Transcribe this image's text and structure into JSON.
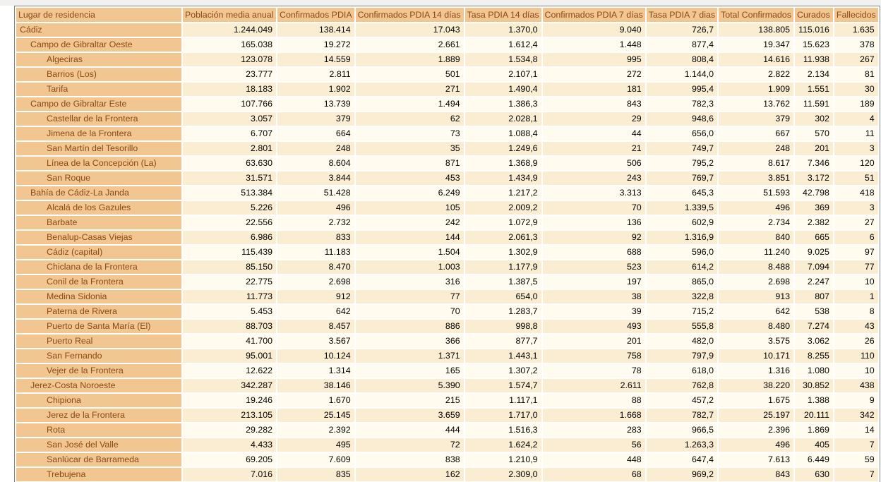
{
  "colors": {
    "header_tan": "#f1c691",
    "row_odd_cream": "#faedd1",
    "row_even_ivory": "#fffbee",
    "label_brown": "#8b4a12",
    "value_black": "#000000",
    "table_border_grey": "#828282"
  },
  "table": {
    "columns": [
      {
        "key": "lugar",
        "label": "Lugar de residencia"
      },
      {
        "key": "poblacion",
        "label": "Población media anual"
      },
      {
        "key": "confirmados",
        "label": "Confirmados PDIA"
      },
      {
        "key": "confirmados14",
        "label": "Confirmados PDIA 14 días"
      },
      {
        "key": "tasa14",
        "label": "Tasa PDIA 14 días"
      },
      {
        "key": "confirmados7",
        "label": "Confirmados PDIA 7 días"
      },
      {
        "key": "tasa7",
        "label": "Tasa PDIA 7 dias"
      },
      {
        "key": "total",
        "label": "Total Confirmados"
      },
      {
        "key": "curados",
        "label": "Curados"
      },
      {
        "key": "fallecidos",
        "label": "Fallecidos"
      }
    ],
    "rows": [
      {
        "name": "Cádiz",
        "level": 0,
        "values": [
          "1.244.049",
          "138.414",
          "17.043",
          "1.370,0",
          "9.040",
          "726,7",
          "138.805",
          "115.016",
          "1.635"
        ]
      },
      {
        "name": "Campo de Gibraltar Oeste",
        "level": 1,
        "values": [
          "165.038",
          "19.272",
          "2.661",
          "1.612,4",
          "1.448",
          "877,4",
          "19.347",
          "15.623",
          "378"
        ]
      },
      {
        "name": "Algeciras",
        "level": 2,
        "values": [
          "123.078",
          "14.559",
          "1.889",
          "1.534,8",
          "995",
          "808,4",
          "14.616",
          "11.938",
          "267"
        ]
      },
      {
        "name": "Barrios (Los)",
        "level": 2,
        "values": [
          "23.777",
          "2.811",
          "501",
          "2.107,1",
          "272",
          "1.144,0",
          "2.822",
          "2.134",
          "81"
        ]
      },
      {
        "name": "Tarifa",
        "level": 2,
        "values": [
          "18.183",
          "1.902",
          "271",
          "1.490,4",
          "181",
          "995,4",
          "1.909",
          "1.551",
          "30"
        ]
      },
      {
        "name": "Campo de Gibraltar Este",
        "level": 1,
        "values": [
          "107.766",
          "13.739",
          "1.494",
          "1.386,3",
          "843",
          "782,3",
          "13.762",
          "11.591",
          "189"
        ]
      },
      {
        "name": "Castellar de la Frontera",
        "level": 2,
        "values": [
          "3.057",
          "379",
          "62",
          "2.028,1",
          "29",
          "948,6",
          "379",
          "302",
          "4"
        ]
      },
      {
        "name": "Jimena de la Frontera",
        "level": 2,
        "values": [
          "6.707",
          "664",
          "73",
          "1.088,4",
          "44",
          "656,0",
          "667",
          "570",
          "11"
        ]
      },
      {
        "name": "San Martín del Tesorillo",
        "level": 2,
        "values": [
          "2.801",
          "248",
          "35",
          "1.249,6",
          "21",
          "749,7",
          "248",
          "201",
          "3"
        ]
      },
      {
        "name": "Línea de la Concepción (La)",
        "level": 2,
        "values": [
          "63.630",
          "8.604",
          "871",
          "1.368,9",
          "506",
          "795,2",
          "8.617",
          "7.346",
          "120"
        ]
      },
      {
        "name": "San Roque",
        "level": 2,
        "values": [
          "31.571",
          "3.844",
          "453",
          "1.434,9",
          "243",
          "769,7",
          "3.851",
          "3.172",
          "51"
        ]
      },
      {
        "name": "Bahía de Cádiz-La Janda",
        "level": 1,
        "values": [
          "513.384",
          "51.428",
          "6.249",
          "1.217,2",
          "3.313",
          "645,3",
          "51.593",
          "42.798",
          "418"
        ]
      },
      {
        "name": "Alcalá de los Gazules",
        "level": 2,
        "values": [
          "5.226",
          "496",
          "105",
          "2.009,2",
          "70",
          "1.339,5",
          "496",
          "369",
          "3"
        ]
      },
      {
        "name": "Barbate",
        "level": 2,
        "values": [
          "22.556",
          "2.732",
          "242",
          "1.072,9",
          "136",
          "602,9",
          "2.734",
          "2.382",
          "27"
        ]
      },
      {
        "name": "Benalup-Casas Viejas",
        "level": 2,
        "values": [
          "6.986",
          "833",
          "144",
          "2.061,3",
          "92",
          "1.316,9",
          "840",
          "665",
          "6"
        ]
      },
      {
        "name": "Cádiz (capital)",
        "level": 2,
        "values": [
          "115.439",
          "11.183",
          "1.504",
          "1.302,9",
          "688",
          "596,0",
          "11.240",
          "9.025",
          "97"
        ]
      },
      {
        "name": "Chiclana de la Frontera",
        "level": 2,
        "values": [
          "85.150",
          "8.470",
          "1.003",
          "1.177,9",
          "523",
          "614,2",
          "8.488",
          "7.094",
          "77"
        ]
      },
      {
        "name": "Conil de la Frontera",
        "level": 2,
        "values": [
          "22.775",
          "2.698",
          "316",
          "1.387,5",
          "197",
          "865,0",
          "2.698",
          "2.247",
          "10"
        ]
      },
      {
        "name": "Medina Sidonia",
        "level": 2,
        "values": [
          "11.773",
          "912",
          "77",
          "654,0",
          "38",
          "322,8",
          "913",
          "807",
          "1"
        ]
      },
      {
        "name": "Paterna de Rivera",
        "level": 2,
        "values": [
          "5.453",
          "642",
          "70",
          "1.283,7",
          "39",
          "715,2",
          "642",
          "538",
          "8"
        ]
      },
      {
        "name": "Puerto de Santa María (El)",
        "level": 2,
        "values": [
          "88.703",
          "8.457",
          "886",
          "998,8",
          "493",
          "555,8",
          "8.480",
          "7.274",
          "43"
        ]
      },
      {
        "name": "Puerto Real",
        "level": 2,
        "values": [
          "41.700",
          "3.567",
          "366",
          "877,7",
          "201",
          "482,0",
          "3.575",
          "3.062",
          "26"
        ]
      },
      {
        "name": "San Fernando",
        "level": 2,
        "values": [
          "95.001",
          "10.124",
          "1.371",
          "1.443,1",
          "758",
          "797,9",
          "10.171",
          "8.255",
          "110"
        ]
      },
      {
        "name": "Vejer de la Frontera",
        "level": 2,
        "values": [
          "12.622",
          "1.314",
          "165",
          "1.307,2",
          "78",
          "618,0",
          "1.316",
          "1.080",
          "10"
        ]
      },
      {
        "name": "Jerez-Costa Noroeste",
        "level": 1,
        "values": [
          "342.287",
          "38.146",
          "5.390",
          "1.574,7",
          "2.611",
          "762,8",
          "38.220",
          "30.852",
          "438"
        ]
      },
      {
        "name": "Chipiona",
        "level": 2,
        "values": [
          "19.246",
          "1.670",
          "215",
          "1.117,1",
          "88",
          "457,2",
          "1.675",
          "1.388",
          "9"
        ]
      },
      {
        "name": "Jerez de la Frontera",
        "level": 2,
        "values": [
          "213.105",
          "25.145",
          "3.659",
          "1.717,0",
          "1.668",
          "782,7",
          "25.197",
          "20.111",
          "342"
        ]
      },
      {
        "name": "Rota",
        "level": 2,
        "values": [
          "29.282",
          "2.392",
          "444",
          "1.516,3",
          "283",
          "966,5",
          "2.396",
          "1.869",
          "14"
        ]
      },
      {
        "name": "San José del Valle",
        "level": 2,
        "values": [
          "4.433",
          "495",
          "72",
          "1.624,2",
          "56",
          "1.263,3",
          "496",
          "405",
          "7"
        ]
      },
      {
        "name": "Sanlúcar de Barrameda",
        "level": 2,
        "values": [
          "69.205",
          "7.609",
          "838",
          "1.210,9",
          "448",
          "647,4",
          "7.613",
          "6.449",
          "59"
        ]
      },
      {
        "name": "Trebujena",
        "level": 2,
        "values": [
          "7.016",
          "835",
          "162",
          "2.309,0",
          "68",
          "969,2",
          "843",
          "630",
          "7"
        ]
      }
    ]
  }
}
